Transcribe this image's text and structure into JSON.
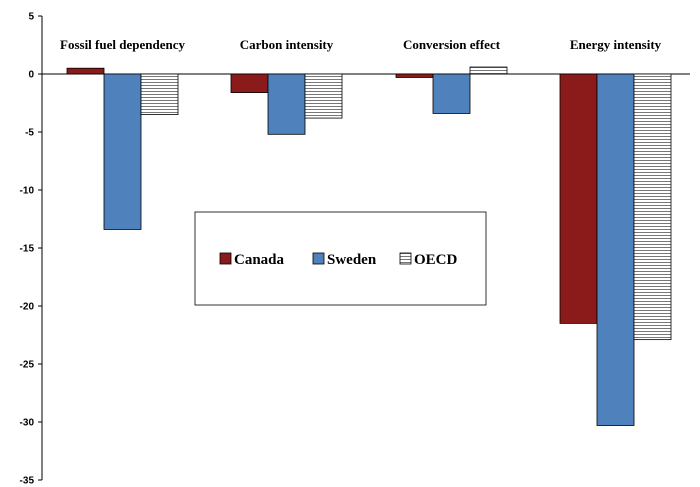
{
  "chart_data": {
    "type": "bar",
    "categories": [
      "Fossil fuel dependency",
      "Carbon intensity",
      "Conversion effect",
      "Energy intensity"
    ],
    "series": [
      {
        "name": "Canada",
        "values": [
          0.5,
          -1.6,
          -0.3,
          -21.5
        ],
        "color": "#8B1A1A",
        "pattern": "solid"
      },
      {
        "name": "Sweden",
        "values": [
          -13.4,
          -5.2,
          -3.4,
          -30.3
        ],
        "color": "#4F81BD",
        "pattern": "solid"
      },
      {
        "name": "OECD",
        "values": [
          -3.5,
          -3.8,
          0.6,
          -22.9
        ],
        "color": "#FFFFFF",
        "pattern": "horizontal-lines"
      }
    ],
    "ylim": [
      -35,
      5
    ],
    "yticks": [
      5,
      0,
      -5,
      -10,
      -15,
      -20,
      -25,
      -30,
      -35
    ],
    "title": "",
    "xlabel": "",
    "ylabel": "",
    "grid": false,
    "legend": {
      "position": "center-left",
      "framed": true
    }
  }
}
